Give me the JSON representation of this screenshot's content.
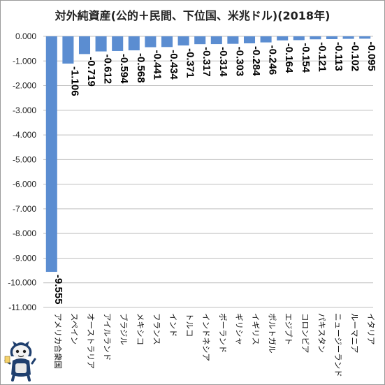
{
  "chart_data": {
    "type": "bar",
    "title": "対外純資産(公的＋民間、下位国、米兆ドル)(2018年)",
    "categories": [
      "アメリカ合衆国",
      "スペイン",
      "オーストラリア",
      "アイルランド",
      "ブラジル",
      "メキシコ",
      "フランス",
      "インド",
      "トルコ",
      "インドネシア",
      "ポーランド",
      "ギリシャ",
      "イギリス",
      "ポルトガル",
      "エジプト",
      "コロンビア",
      "パキスタン",
      "ニュージーランド",
      "ルーマニア",
      "イタリア"
    ],
    "values": [
      -9.555,
      -1.106,
      -0.719,
      -0.612,
      -0.594,
      -0.568,
      -0.441,
      -0.434,
      -0.371,
      -0.317,
      -0.314,
      -0.303,
      -0.284,
      -0.246,
      -0.164,
      -0.154,
      -0.121,
      -0.113,
      -0.102,
      -0.095
    ],
    "value_labels": [
      "-9.555",
      "-1.106",
      "-0.719",
      "-0.612",
      "-0.594",
      "-0.568",
      "-0.441",
      "-0.434",
      "-0.371",
      "-0.317",
      "-0.314",
      "-0.303",
      "-0.284",
      "-0.246",
      "-0.164",
      "-0.154",
      "-0.121",
      "-0.113",
      "-0.102",
      "-0.095"
    ],
    "yticks": [
      0,
      -1,
      -2,
      -3,
      -4,
      -5,
      -6,
      -7,
      -8,
      -9,
      -10,
      -11
    ],
    "ytick_labels": [
      "0.000",
      "-1.000",
      "-2.000",
      "-3.000",
      "-4.000",
      "-5.000",
      "-6.000",
      "-7.000",
      "-8.000",
      "-9.000",
      "-10.000",
      "-11.000"
    ],
    "ylim": [
      -11,
      0
    ],
    "grid": true,
    "bar_color": "#5b8dd1",
    "grid_color": "#bfbfbf"
  }
}
